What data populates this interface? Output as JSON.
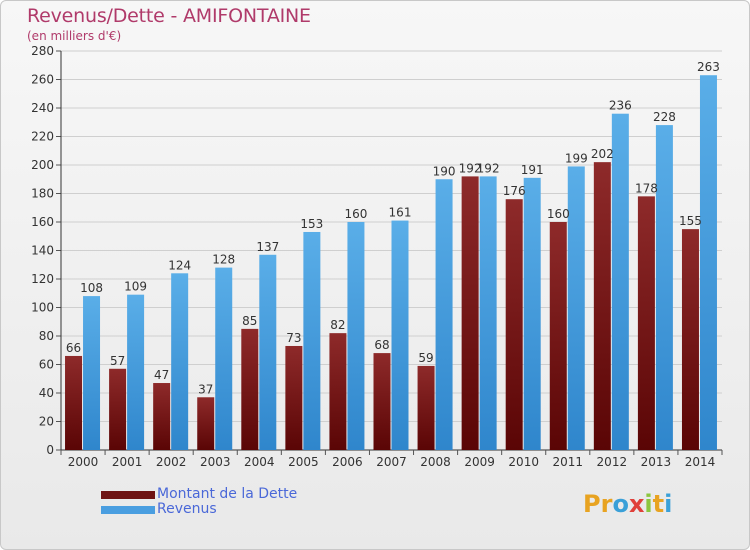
{
  "header": {
    "title": "Revenus/Dette - AMIFONTAINE",
    "subtitle": "(en milliers d'€)"
  },
  "chart_data": {
    "type": "bar",
    "categories": [
      "2000",
      "2001",
      "2002",
      "2003",
      "2004",
      "2005",
      "2006",
      "2007",
      "2008",
      "2009",
      "2010",
      "2011",
      "2012",
      "2013",
      "2014"
    ],
    "series": [
      {
        "name": "Montant de la Dette",
        "color": "#7a1a1a",
        "values": [
          66,
          57,
          47,
          37,
          85,
          73,
          82,
          68,
          59,
          192,
          176,
          160,
          202,
          178,
          155
        ]
      },
      {
        "name": "Revenus",
        "color": "#4a9ee0",
        "values": [
          108,
          109,
          124,
          128,
          137,
          153,
          160,
          161,
          190,
          192,
          191,
          199,
          236,
          228,
          263
        ]
      }
    ],
    "title": "Revenus/Dette - AMIFONTAINE",
    "ylabel": "",
    "ylim": [
      0,
      280
    ],
    "yticks": [
      0,
      20,
      40,
      60,
      80,
      100,
      120,
      140,
      160,
      180,
      200,
      220,
      240,
      260,
      280
    ],
    "grid": true,
    "legend_position": "bottom-left"
  },
  "legend": {
    "items": [
      {
        "label": "Montant de la Dette",
        "color": "#6e1212"
      },
      {
        "label": "Revenus",
        "color": "#4a9ee0"
      }
    ]
  },
  "logo": {
    "letters": [
      {
        "ch": "P",
        "color": "#e8a321"
      },
      {
        "ch": "r",
        "color": "#e8a321"
      },
      {
        "ch": "o",
        "color": "#3aa0d8"
      },
      {
        "ch": "x",
        "color": "#e0403a"
      },
      {
        "ch": "i",
        "color": "#8cc63f"
      },
      {
        "ch": "t",
        "color": "#e8a321"
      },
      {
        "ch": "i",
        "color": "#3aa0d8"
      }
    ]
  }
}
